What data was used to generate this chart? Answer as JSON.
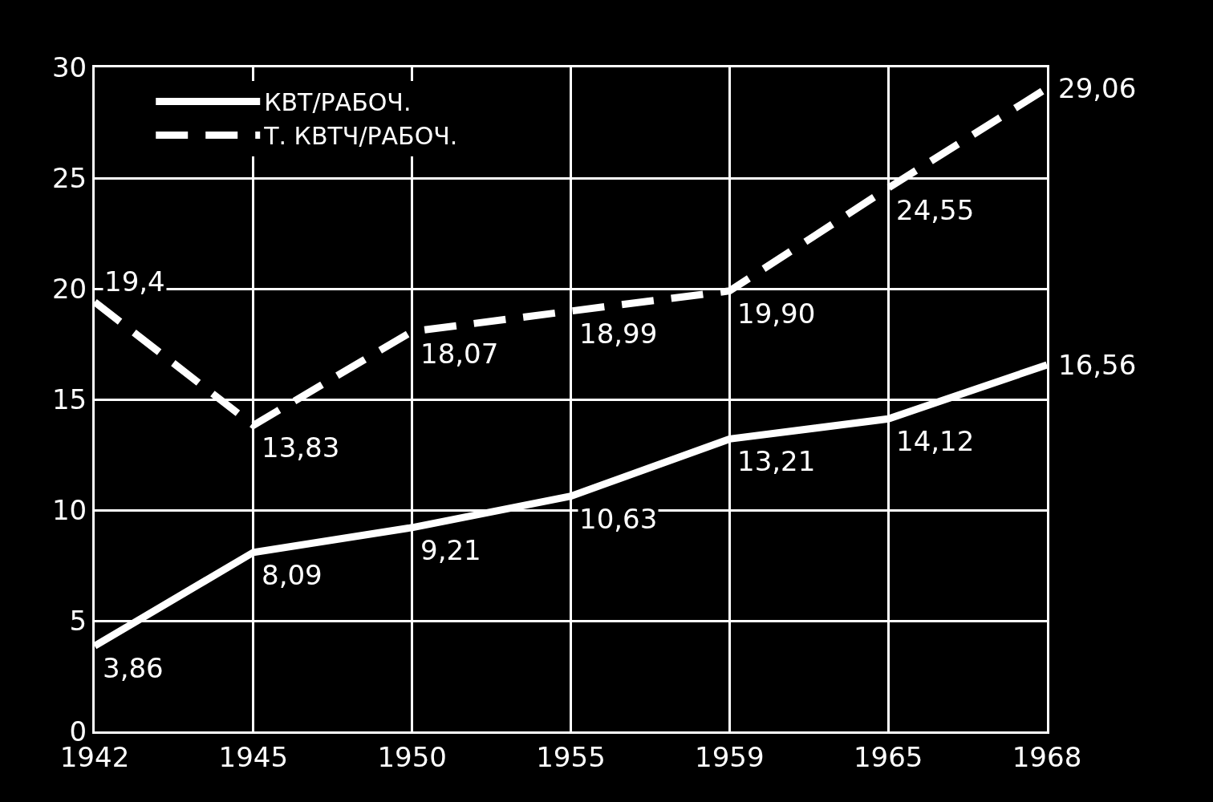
{
  "chart_data": {
    "type": "line",
    "categories": [
      "1942",
      "1945",
      "1950",
      "1955",
      "1959",
      "1965",
      "1968"
    ],
    "ylim": [
      0,
      30
    ],
    "yticks": [
      0,
      5,
      10,
      15,
      20,
      25,
      30
    ],
    "grid": true,
    "legend": "top left",
    "series": [
      {
        "name": "КВТ/РАБОЧ.",
        "color": "#ffffff",
        "line_style": "solid",
        "values": [
          3.86,
          8.09,
          9.21,
          10.63,
          13.21,
          14.12,
          16.56
        ],
        "value_labels": [
          "3,86",
          "8,09",
          "9,21",
          "10,63",
          "13,21",
          "14,12",
          "16,56"
        ]
      },
      {
        "name": "Т. КВТЧ/РАБОЧ.",
        "color": "#ffffff",
        "line_style": "dashed",
        "values": [
          19.4,
          13.83,
          18.07,
          18.99,
          19.9,
          24.55,
          29.06
        ],
        "value_labels": [
          "19,4",
          "13,83",
          "18,07",
          "18,99",
          "19,90",
          "24,55",
          "29,06"
        ]
      }
    ]
  }
}
